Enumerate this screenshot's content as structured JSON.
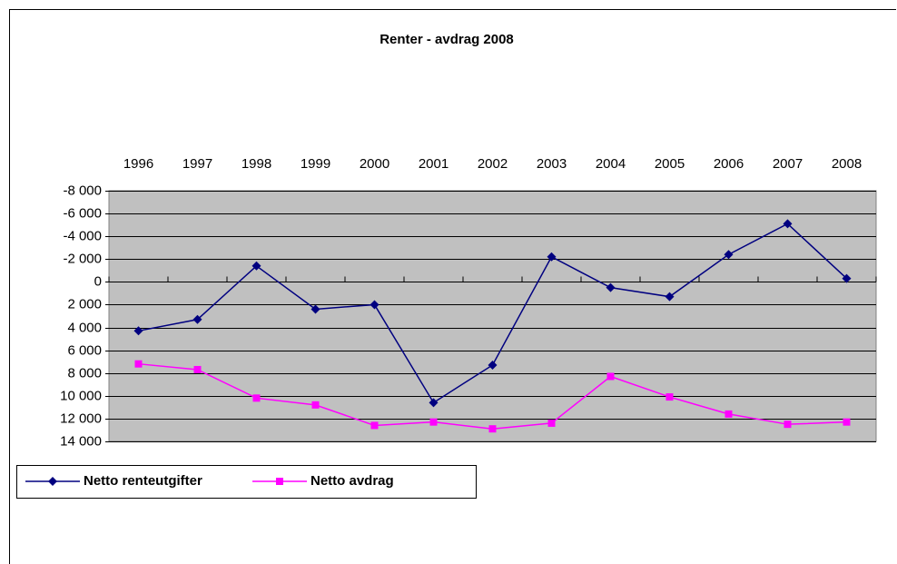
{
  "chart_data": {
    "type": "line",
    "title": "Renter - avdrag 2008",
    "categories": [
      "1996",
      "1997",
      "1998",
      "1999",
      "2000",
      "2001",
      "2002",
      "2003",
      "2004",
      "2005",
      "2006",
      "2007",
      "2008"
    ],
    "series": [
      {
        "name": "Netto renteutgifter",
        "color": "#000080",
        "marker": "diamond",
        "values": [
          4300,
          3300,
          -1400,
          2400,
          2000,
          10600,
          7300,
          -2200,
          500,
          1300,
          -2400,
          -5100,
          -300
        ]
      },
      {
        "name": "Netto avdrag",
        "color": "#ff00ff",
        "marker": "square",
        "values": [
          7200,
          7700,
          10200,
          10800,
          12600,
          12300,
          12900,
          12400,
          8300,
          10100,
          11600,
          12500,
          12300
        ]
      }
    ],
    "ylim": [
      -8000,
      14000
    ],
    "y_reversed": true,
    "yticks": [
      {
        "value": -8000,
        "label": "-8 000"
      },
      {
        "value": -6000,
        "label": "-6 000"
      },
      {
        "value": -4000,
        "label": "-4 000"
      },
      {
        "value": -2000,
        "label": "-2 000"
      },
      0,
      {
        "value": 2000,
        "label": "2 000"
      },
      {
        "value": 4000,
        "label": "4 000"
      },
      {
        "value": 6000,
        "label": "6 000"
      },
      {
        "value": 8000,
        "label": "8 000"
      },
      {
        "value": 10000,
        "label": "10 000"
      },
      {
        "value": 12000,
        "label": "12 000"
      },
      {
        "value": 14000,
        "label": "14 000"
      }
    ],
    "grid": true,
    "plot_color": "#c0c0c0"
  }
}
